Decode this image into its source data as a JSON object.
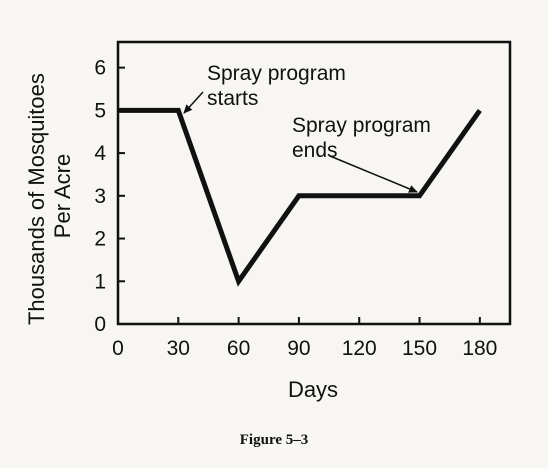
{
  "chart_data": {
    "type": "line",
    "title": "",
    "xlabel": "Days",
    "ylabel": [
      "Thousands of Mosquitoes",
      "Per Acre"
    ],
    "x": [
      0,
      30,
      60,
      90,
      120,
      150,
      180
    ],
    "series": [
      {
        "values": [
          5,
          5,
          1,
          3,
          3,
          3,
          5
        ]
      }
    ],
    "xlim": [
      0,
      195
    ],
    "ylim": [
      0,
      6.6
    ],
    "xticks": [
      "0",
      "30",
      "60",
      "90",
      "120",
      "150",
      "180"
    ],
    "yticks": [
      "0",
      "1",
      "2",
      "3",
      "4",
      "5",
      "6"
    ],
    "grid": false,
    "legend": "none",
    "annotations": [
      {
        "lines": [
          "Spray program",
          "starts"
        ],
        "points_to": [
          30,
          5
        ]
      },
      {
        "lines": [
          "Spray program",
          "ends"
        ],
        "points_to": [
          150,
          3
        ]
      }
    ]
  },
  "caption": "Figure 5–3",
  "colors": {
    "line": "#111111",
    "background": "#f7f6f2"
  }
}
